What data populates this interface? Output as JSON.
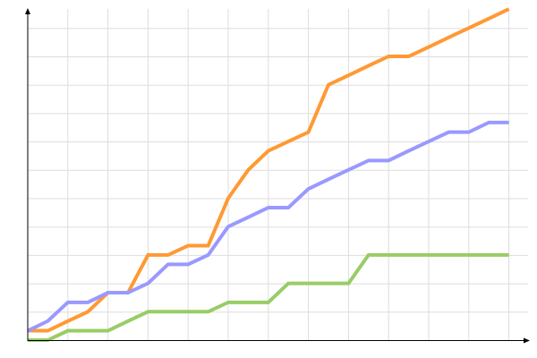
{
  "chart_data": {
    "type": "line",
    "title": "",
    "xlabel": "",
    "ylabel": "",
    "x": [
      0,
      1,
      2,
      3,
      4,
      5,
      6,
      7,
      8,
      9,
      10,
      11,
      12,
      13,
      14,
      15,
      16,
      17,
      18,
      19,
      20,
      21,
      22,
      23,
      24
    ],
    "xlim": [
      0,
      24.7
    ],
    "ylim": [
      0,
      11.67
    ],
    "grid": true,
    "tick_labels": false,
    "legend": "none",
    "series": [
      {
        "color": "#ff9933",
        "values": [
          0.33,
          0.33,
          0.67,
          1,
          1.67,
          1.67,
          3,
          3,
          3.33,
          3.33,
          5,
          6,
          6.67,
          7,
          7.33,
          9,
          9.33,
          9.67,
          10,
          10,
          10.33,
          10.67,
          11,
          11.33,
          11.67
        ]
      },
      {
        "color": "#9999ff",
        "values": [
          0.33,
          0.67,
          1.33,
          1.33,
          1.67,
          1.67,
          2,
          2.67,
          2.67,
          3,
          4,
          4.33,
          4.67,
          4.67,
          5.33,
          5.67,
          6,
          6.33,
          6.33,
          6.67,
          7,
          7.33,
          7.33,
          7.67,
          7.67
        ]
      },
      {
        "color": "#99cc66",
        "values": [
          0,
          0,
          0.33,
          0.33,
          0.33,
          0.67,
          1,
          1,
          1,
          1,
          1.33,
          1.33,
          1.33,
          2,
          2,
          2,
          2,
          3,
          3,
          3,
          3,
          3,
          3,
          3,
          3
        ]
      }
    ]
  }
}
